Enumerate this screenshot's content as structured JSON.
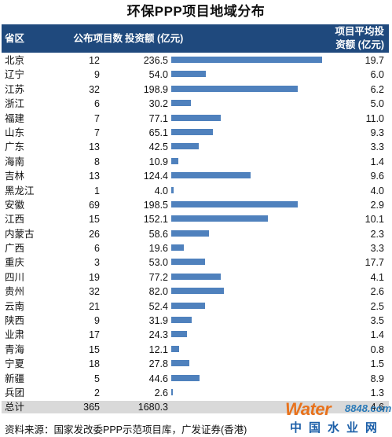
{
  "title": "环保PPP项目地域分布",
  "headers": {
    "province": "省区",
    "count": "公布项目数",
    "investment": "投资额 (亿元)",
    "avg": "项目平均投\n资额 (亿元)"
  },
  "chart_data": {
    "type": "bar",
    "title": "环保PPP项目地域分布",
    "categories": [
      "北京",
      "辽宁",
      "江苏",
      "浙江",
      "福建",
      "山东",
      "广东",
      "海南",
      "吉林",
      "黑龙江",
      "安徽",
      "江西",
      "内蒙古",
      "广西",
      "重庆",
      "四川",
      "贵州",
      "云南",
      "陕西",
      "业肃",
      "青海",
      "宁夏",
      "新疆",
      "兵团"
    ],
    "series": [
      {
        "name": "公布项目数",
        "values": [
          12,
          9,
          32,
          6,
          7,
          7,
          13,
          8,
          13,
          1,
          69,
          15,
          26,
          6,
          3,
          19,
          32,
          21,
          9,
          17,
          15,
          18,
          5,
          2
        ]
      },
      {
        "name": "投资额 (亿元)",
        "values": [
          236.5,
          54.0,
          198.9,
          30.2,
          77.1,
          65.1,
          42.5,
          10.9,
          124.4,
          4.0,
          198.5,
          152.1,
          58.6,
          19.6,
          53.0,
          77.2,
          82.0,
          52.4,
          31.9,
          24.3,
          12.1,
          27.8,
          44.6,
          2.6
        ]
      },
      {
        "name": "项目平均投资额 (亿元)",
        "values": [
          19.7,
          6.0,
          6.2,
          5.0,
          11.0,
          9.3,
          3.3,
          1.4,
          9.6,
          4.0,
          2.9,
          10.1,
          2.3,
          3.3,
          17.7,
          4.1,
          2.6,
          2.5,
          3.5,
          1.4,
          0.8,
          1.5,
          8.9,
          1.3
        ]
      }
    ],
    "display": {
      "count": [
        "12",
        "9",
        "32",
        "6",
        "7",
        "7",
        "13",
        "8",
        "13",
        "1",
        "69",
        "15",
        "26",
        "6",
        "3",
        "19",
        "32",
        "21",
        "9",
        "17",
        "15",
        "18",
        "5",
        "2"
      ],
      "investment": [
        "236.5",
        "54.0",
        "198.9",
        "30.2",
        "77.1",
        "65.1",
        "42.5",
        "10.9",
        "124.4",
        "4.0",
        "198.5",
        "152.1",
        "58.6",
        "19.6",
        "53.0",
        "77.2",
        "82.0",
        "52.4",
        "31.9",
        "24.3",
        "12.1",
        "27.8",
        "44.6",
        "2.6"
      ],
      "avg": [
        "19.7",
        "6.0",
        "6.2",
        "5.0",
        "11.0",
        "9.3",
        "3.3",
        "1.4",
        "9.6",
        "4.0",
        "2.9",
        "10.1",
        "2.3",
        "3.3",
        "17.7",
        "4.1",
        "2.6",
        "2.5",
        "3.5",
        "1.4",
        "0.8",
        "1.5",
        "8.9",
        "1.3"
      ]
    },
    "bar_max": 236.5,
    "bar_color": "#4f81bd"
  },
  "total": {
    "label": "总计",
    "count": "365",
    "investment": "1680.3",
    "avg": "4.6"
  },
  "source": "资料来源：国家发改委PPP示范项目库，广发证券(香港)",
  "watermark": {
    "brand": "Water",
    "digits": "8848",
    "sub": ".com",
    "cn": "中国水业网"
  },
  "colors": {
    "header_bg": "#1f497d",
    "total_bg": "#d9d9d9",
    "bar": "#4f81bd"
  }
}
